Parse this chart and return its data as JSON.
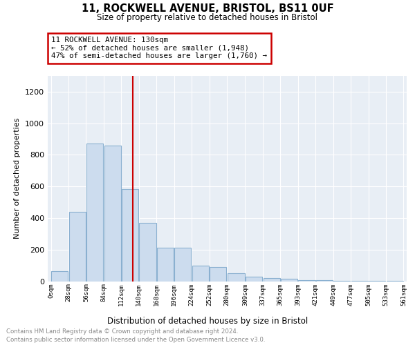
{
  "title1": "11, ROCKWELL AVENUE, BRISTOL, BS11 0UF",
  "title2": "Size of property relative to detached houses in Bristol",
  "xlabel": "Distribution of detached houses by size in Bristol",
  "ylabel": "Number of detached properties",
  "footnote1": "Contains HM Land Registry data © Crown copyright and database right 2024.",
  "footnote2": "Contains public sector information licensed under the Open Government Licence v3.0.",
  "annotation_line1": "11 ROCKWELL AVENUE: 130sqm",
  "annotation_line2": "← 52% of detached houses are smaller (1,948)",
  "annotation_line3": "47% of semi-detached houses are larger (1,760) →",
  "property_sqm": 130,
  "bar_edges": [
    0,
    28,
    56,
    84,
    112,
    140,
    168,
    196,
    224,
    252,
    280,
    309,
    337,
    365,
    393,
    421,
    449,
    477,
    505,
    533,
    561
  ],
  "bar_heights": [
    63,
    440,
    870,
    860,
    585,
    370,
    210,
    210,
    100,
    90,
    50,
    30,
    18,
    15,
    8,
    5,
    2,
    1,
    1,
    1
  ],
  "bar_color": "#ccdcee",
  "bar_edgecolor": "#8ab0d0",
  "redline_x": 130,
  "ylim": [
    0,
    1300
  ],
  "yticks": [
    0,
    200,
    400,
    600,
    800,
    1000,
    1200
  ],
  "annotation_box_color": "#cc0000",
  "annotation_bg": "#ffffff",
  "bg_color": "#e8eef5"
}
